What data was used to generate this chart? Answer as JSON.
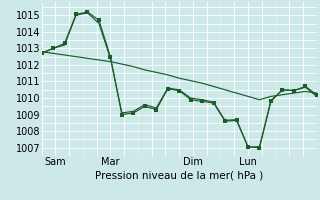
{
  "xlabel": "Pression niveau de la mer( hPa )",
  "bg_color": "#cce8e8",
  "grid_color": "#ffffff",
  "line_color": "#1a5c2a",
  "ylim": [
    1006.5,
    1015.8
  ],
  "yticks": [
    1007,
    1008,
    1009,
    1010,
    1011,
    1012,
    1013,
    1014,
    1015
  ],
  "xtick_labels": [
    "Sam",
    "Mar",
    "Dim",
    "Lun"
  ],
  "xtick_positions": [
    0.5,
    2.5,
    5.5,
    7.5
  ],
  "vline_positions": [
    1.5,
    3.5,
    6.5,
    8.5
  ],
  "xlim": [
    0,
    10
  ],
  "series_main": [
    1012.7,
    1013.0,
    1013.3,
    1015.05,
    1015.2,
    1014.7,
    1012.5,
    1009.0,
    1009.1,
    1009.5,
    1009.3,
    1010.55,
    1010.45,
    1009.9,
    1009.8,
    1009.7,
    1008.6,
    1008.65,
    1007.05,
    1007.0,
    1009.8,
    1010.5,
    1010.45,
    1010.7,
    1010.2
  ],
  "series_trend": [
    1012.8,
    1012.7,
    1012.6,
    1012.5,
    1012.4,
    1012.3,
    1012.2,
    1012.05,
    1011.9,
    1011.7,
    1011.55,
    1011.4,
    1011.2,
    1011.05,
    1010.9,
    1010.7,
    1010.5,
    1010.3,
    1010.1,
    1009.9,
    1010.1,
    1010.2,
    1010.3,
    1010.4,
    1010.3
  ],
  "series_alt": [
    1012.7,
    1013.0,
    1013.2,
    1015.0,
    1015.15,
    1014.5,
    1012.4,
    1009.1,
    1009.2,
    1009.6,
    1009.4,
    1010.6,
    1010.5,
    1010.0,
    1009.9,
    1009.75,
    1008.65,
    1008.7,
    1007.05,
    1007.05,
    1009.85,
    1010.5,
    1010.45,
    1010.65,
    1010.1
  ],
  "n": 25,
  "marker_size": 2.2,
  "linewidth": 0.85
}
